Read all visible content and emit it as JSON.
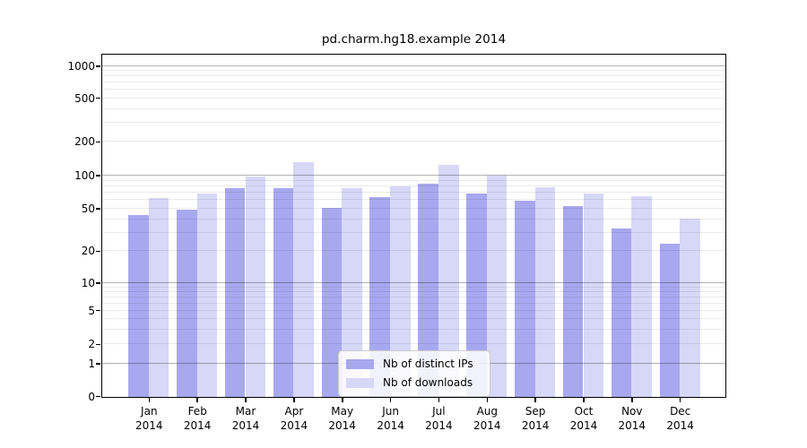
{
  "figure": {
    "background": "#ffffff"
  },
  "chart_data": {
    "type": "bar",
    "title": "pd.charm.hg18.example 2014",
    "categories": [
      "Jan 2014",
      "Feb 2014",
      "Mar 2014",
      "Apr 2014",
      "May 2014",
      "Jun 2014",
      "Jul 2014",
      "Aug 2014",
      "Sep 2014",
      "Oct 2014",
      "Nov 2014",
      "Dec 2014"
    ],
    "x_tick_months": [
      "Jan",
      "Feb",
      "Mar",
      "Apr",
      "May",
      "Jun",
      "Jul",
      "Aug",
      "Sep",
      "Oct",
      "Nov",
      "Dec"
    ],
    "x_tick_year": "2014",
    "series": [
      {
        "name": "Nb of distinct IPs",
        "color": "#a8a8f0",
        "values": [
          44,
          50,
          78,
          78,
          52,
          65,
          86,
          70,
          60,
          54,
          33,
          24
        ]
      },
      {
        "name": "Nb of downloads",
        "color": "#d7d7f7",
        "values": [
          63,
          70,
          100,
          134,
          78,
          81,
          127,
          101,
          79,
          70,
          66,
          41
        ]
      }
    ],
    "yticks": [
      0,
      1,
      2,
      5,
      10,
      20,
      50,
      100,
      200,
      500,
      1000
    ],
    "yscale": "log-like with linear 0-1 segment",
    "ylabel": "",
    "xlabel": "",
    "grid": true,
    "grid_major_values": [
      1,
      10,
      100,
      1000
    ],
    "legend_position": "inside-bottom-center",
    "colors": {
      "grid_major": "#b3b3b3",
      "grid_minor": "#ececec",
      "spine": "#000000",
      "text": "#000000",
      "background": "#ffffff"
    }
  }
}
